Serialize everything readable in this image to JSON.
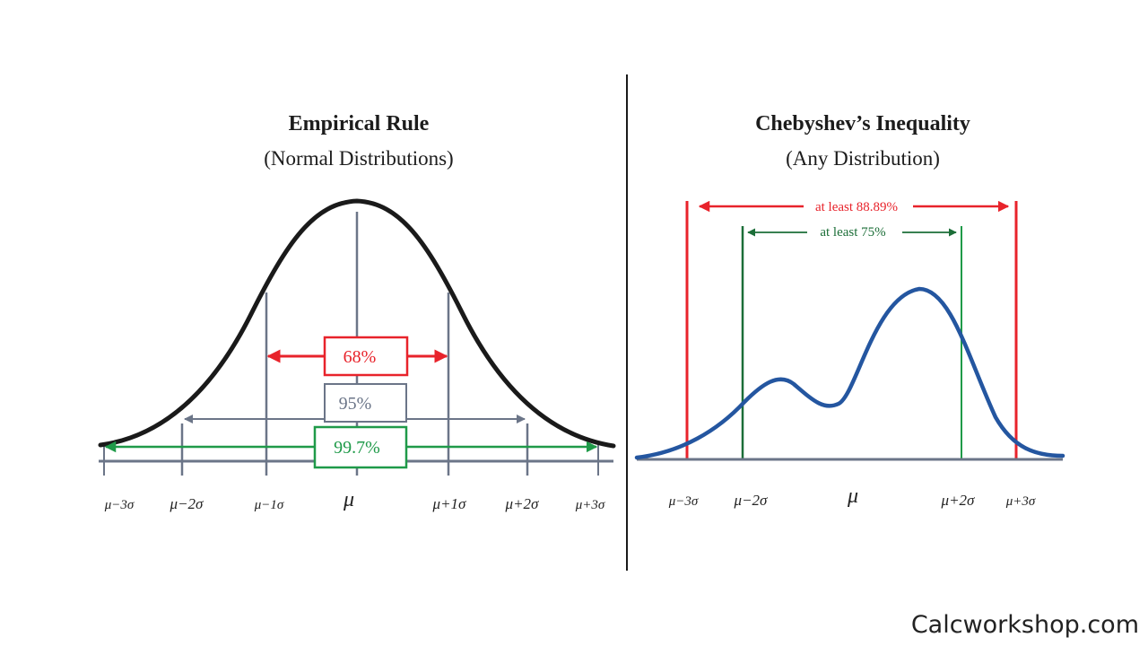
{
  "colors": {
    "red": "#e8232b",
    "gray": "#6b7588",
    "green": "#1f9a49",
    "blue": "#2456a0",
    "dark_green": "#1c6e38",
    "curve": "#1a1a1a"
  },
  "left_panel": {
    "title": "Empirical Rule",
    "subtitle": "(Normal Distributions)",
    "ticks": [
      "μ−3σ",
      "μ−2σ",
      "μ−1σ",
      "μ",
      "μ+1σ",
      "μ+2σ",
      "μ+3σ"
    ],
    "intervals": [
      {
        "label": "68%",
        "color": "red"
      },
      {
        "label": "95%",
        "color": "gray"
      },
      {
        "label": "99.7%",
        "color": "green"
      }
    ]
  },
  "right_panel": {
    "title": "Chebyshev’s Inequality",
    "subtitle": "(Any Distribution)",
    "ticks": [
      "μ−3σ",
      "μ−2σ",
      "μ",
      "μ+2σ",
      "μ+3σ"
    ],
    "intervals": [
      {
        "label": "at least 88.89%",
        "color": "red"
      },
      {
        "label": "at least 75%",
        "color": "dark_green"
      }
    ]
  },
  "watermark": "Calcworkshop.com"
}
